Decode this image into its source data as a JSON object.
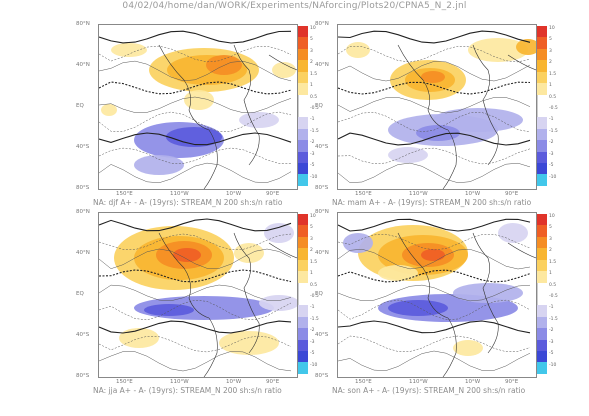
{
  "title": "04/02/04/home/dan/WORK/Experiments/NAforcing/Plots20/CPNA5_N_2.jnl",
  "colors": {
    "positive": [
      "#fde8a0",
      "#fbd160",
      "#f8b531",
      "#f58d24",
      "#ef5f25",
      "#e0342a"
    ],
    "negative": [
      "#d7d4f1",
      "#b1b1ec",
      "#8b8be6",
      "#5b5bdc",
      "#3b48d6",
      "#42c7ea"
    ]
  },
  "chart_data": [
    {
      "type": "heatmap",
      "caption": "NA: djf A+ - A- (19yrs): STREAM_N 200 sh:s/n ratio",
      "lat_labels": [
        "80°N",
        "40°N",
        "EQ",
        "40°S",
        "80°S"
      ],
      "lon_labels": [
        "150°E",
        "110°W",
        "10°W",
        "90°E"
      ],
      "colorbar_ticks": [
        "10",
        "5",
        "3",
        "2",
        "1.5",
        "1",
        "0.5",
        "-0.5",
        "-1",
        "-1.5",
        "-2",
        "-3",
        "-5",
        "-10"
      ],
      "colorbar": [
        {
          "label": "10",
          "color": "#e0342a"
        },
        {
          "label": "5",
          "color": "#ef5f25"
        },
        {
          "label": "3",
          "color": "#f58d24"
        },
        {
          "label": "2",
          "color": "#f8b531"
        },
        {
          "label": "1.5",
          "color": "#fbd160"
        },
        {
          "label": "1",
          "color": "#fde8a0"
        },
        {
          "label": "0.5",
          "color": "#ffffff"
        },
        {
          "label": "-0.5",
          "color": "#ffffff"
        },
        {
          "label": "-1",
          "color": "#d7d4f1"
        },
        {
          "label": "-1.5",
          "color": "#b1b1ec"
        },
        {
          "label": "-2",
          "color": "#8b8be6"
        },
        {
          "label": "-3",
          "color": "#5b5bdc"
        },
        {
          "label": "-5",
          "color": "#3b48d6"
        },
        {
          "label": "-10",
          "color": "#42c7ea"
        }
      ]
    },
    {
      "type": "heatmap",
      "caption": "NA: mam A+ - A- (19yrs): STREAM_N 200 sh:s/n ratio",
      "lat_labels": [
        "80°N",
        "40°N",
        "EQ",
        "40°S",
        "80°S"
      ],
      "lon_labels": [
        "150°E",
        "110°W",
        "10°W",
        "90°E"
      ],
      "colorbar_ticks": [
        "10",
        "5",
        "3",
        "2",
        "1.5",
        "1",
        "0.5",
        "-0.5",
        "-1",
        "-1.5",
        "-2",
        "-3",
        "-5",
        "-10"
      ]
    },
    {
      "type": "heatmap",
      "caption": "NA: jja A+ - A- (19yrs): STREAM_N 200 sh:s/n ratio",
      "lat_labels": [
        "80°N",
        "40°N",
        "EQ",
        "40°S",
        "80°S"
      ],
      "lon_labels": [
        "150°E",
        "110°W",
        "10°W",
        "90°E"
      ],
      "colorbar_ticks": [
        "10",
        "5",
        "3",
        "2",
        "1.5",
        "1",
        "0.5",
        "-0.5",
        "-1",
        "-1.5",
        "-2",
        "-3",
        "-5",
        "-10"
      ]
    },
    {
      "type": "heatmap",
      "caption": "NA: son A+ - A- (19yrs): STREAM_N 200 sh:s/n ratio",
      "lat_labels": [
        "80°N",
        "40°N",
        "EQ",
        "40°S",
        "80°S"
      ],
      "lon_labels": [
        "150°E",
        "110°W",
        "10°W",
        "90°E"
      ],
      "colorbar_ticks": [
        "10",
        "5",
        "3",
        "2",
        "1.5",
        "1",
        "0.5",
        "-0.5",
        "-1",
        "-1.5",
        "-2",
        "-3",
        "-5",
        "-10"
      ]
    }
  ]
}
